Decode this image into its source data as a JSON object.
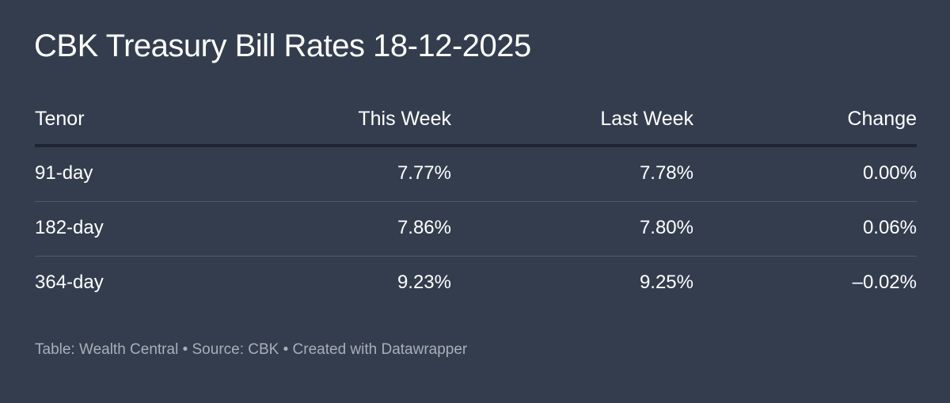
{
  "header": {
    "title": "CBK Treasury Bill Rates 18-12-2025"
  },
  "table": {
    "columns": [
      "Tenor",
      "This Week",
      "Last Week",
      "Change"
    ],
    "rows": [
      [
        "91-day",
        "7.77%",
        "7.78%",
        "0.00%"
      ],
      [
        "182-day",
        "7.86%",
        "7.80%",
        "0.06%"
      ],
      [
        "364-day",
        "9.23%",
        "9.25%",
        "–0.02%"
      ]
    ]
  },
  "footer": {
    "text": "Table: Wealth Central • Source: CBK • Created with Datawrapper"
  }
}
